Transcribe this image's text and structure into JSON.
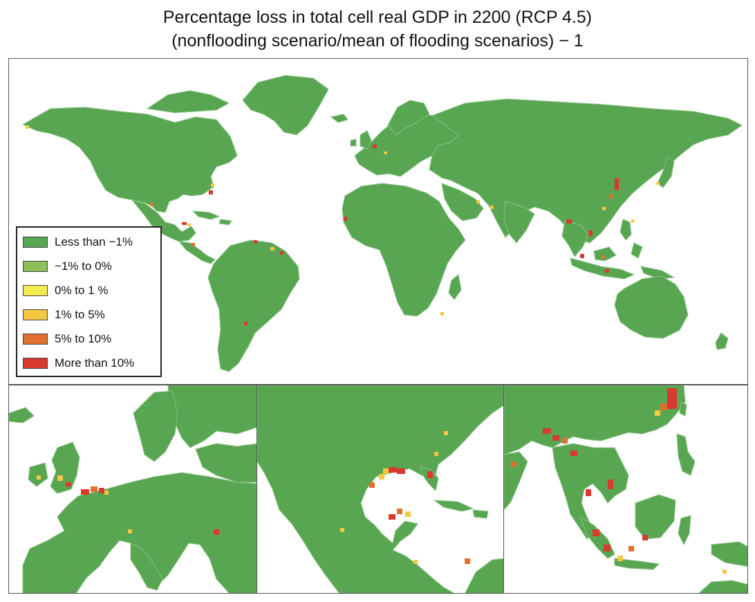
{
  "title": {
    "line1": "Percentage loss in total cell real GDP in 2200 (RCP 4.5)",
    "line2": "(nonflooding scenario/mean of flooding scenarios) − 1"
  },
  "legend": {
    "items": [
      {
        "label": "Less than −1%",
        "color": "#58a552"
      },
      {
        "label": "−1% to 0%",
        "color": "#8dc059"
      },
      {
        "label": "0% to 1 %",
        "color": "#f2ec4e"
      },
      {
        "label": "1% to 5%",
        "color": "#f5c842"
      },
      {
        "label": "5% to 10%",
        "color": "#e0702f"
      },
      {
        "label": "More than 10%",
        "color": "#d83a2e"
      }
    ]
  },
  "colors": {
    "land": "#58a552",
    "border": "#8bc585",
    "ocean": "#ffffff",
    "frame": "#555555"
  },
  "panels": {
    "world": "world map",
    "insets": [
      "europe",
      "north-america-caribbean",
      "southeast-asia"
    ]
  }
}
